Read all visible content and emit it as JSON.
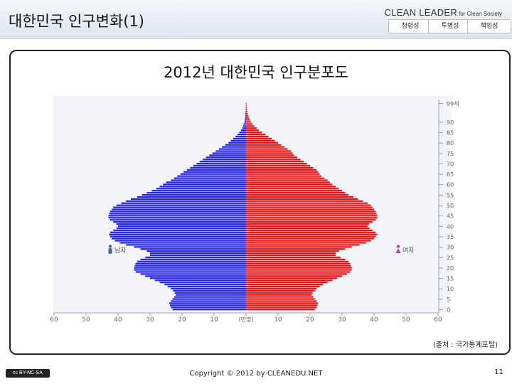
{
  "header": {
    "title": "대한민국 인구변화(1)",
    "brand": "CLEAN LEADER",
    "brand_sub": "for Clean Society",
    "tabs": [
      "청렴성",
      "투명성",
      "책임성"
    ]
  },
  "chart_data": {
    "type": "bar",
    "orientation": "horizontal-pyramid",
    "title": "2012년 대한민국 인구분포도",
    "xlabel": "(만명)",
    "xlim": [
      -60,
      60
    ],
    "x_ticks": [
      60,
      50,
      40,
      30,
      20,
      10,
      0,
      10,
      20,
      30,
      40,
      50,
      60
    ],
    "age_ticks": [
      "99세",
      "90",
      "85",
      "80",
      "75",
      "70",
      "65",
      "60",
      "55",
      "50",
      "45",
      "40",
      "35",
      "30",
      "25",
      "20",
      "15",
      "10",
      "5",
      "0"
    ],
    "ages": [
      0,
      1,
      2,
      3,
      4,
      5,
      6,
      7,
      8,
      9,
      10,
      11,
      12,
      13,
      14,
      15,
      16,
      17,
      18,
      19,
      20,
      21,
      22,
      23,
      24,
      25,
      26,
      27,
      28,
      29,
      30,
      31,
      32,
      33,
      34,
      35,
      36,
      37,
      38,
      39,
      40,
      41,
      42,
      43,
      44,
      45,
      46,
      47,
      48,
      49,
      50,
      51,
      52,
      53,
      54,
      55,
      56,
      57,
      58,
      59,
      60,
      61,
      62,
      63,
      64,
      65,
      66,
      67,
      68,
      69,
      70,
      71,
      72,
      73,
      74,
      75,
      76,
      77,
      78,
      79,
      80,
      81,
      82,
      83,
      84,
      85,
      86,
      87,
      88,
      89,
      90,
      91,
      92,
      93,
      94,
      95,
      96,
      97,
      98,
      99
    ],
    "series": [
      {
        "name": "남자",
        "color": "#2222ee",
        "values": [
          23,
          23.5,
          23.8,
          24,
          23.5,
          23,
          22.5,
          22,
          22.3,
          22.8,
          23.5,
          24.5,
          25.5,
          27,
          28.5,
          30,
          31.5,
          33,
          34.5,
          35,
          35,
          34.8,
          34.5,
          34,
          33,
          31.5,
          30,
          30,
          31,
          33,
          35,
          37.5,
          39.5,
          41,
          42,
          42.5,
          42.8,
          42.5,
          41.5,
          40.5,
          40,
          40.5,
          41.5,
          42.5,
          43,
          43,
          42.8,
          42.5,
          42,
          41.5,
          40.5,
          39,
          37.5,
          36,
          34,
          32.5,
          31,
          29.5,
          28,
          27,
          26,
          25,
          23.5,
          22.5,
          21.5,
          20.5,
          19.5,
          18.5,
          17.5,
          16.5,
          15.5,
          14.5,
          13.5,
          12.5,
          11.5,
          10.5,
          9.5,
          8.5,
          7.5,
          6.5,
          5.5,
          4.8,
          4,
          3.3,
          2.7,
          2.1,
          1.6,
          1.2,
          0.9,
          0.7,
          0.5,
          0.4,
          0.3,
          0.2,
          0.2,
          0.1,
          0.1,
          0.1,
          0.05,
          0.05
        ]
      },
      {
        "name": "여자",
        "color": "#ee1111",
        "values": [
          21.5,
          22,
          22.3,
          22.5,
          22,
          21.5,
          21,
          20.5,
          20.8,
          21.5,
          22,
          23,
          24,
          25.5,
          27,
          28.5,
          30,
          31.5,
          32.5,
          33,
          33,
          32.8,
          32.5,
          32,
          31,
          29.5,
          28,
          28,
          29,
          31,
          33,
          35.5,
          37.5,
          39,
          40,
          40.5,
          41,
          40.5,
          39.5,
          38.5,
          38,
          38.5,
          39.5,
          40.5,
          41,
          41,
          40.8,
          40.5,
          40,
          39.5,
          39,
          38,
          36.5,
          35,
          33.5,
          32,
          31,
          30,
          29,
          28,
          27,
          26.2,
          25.5,
          24.5,
          23.5,
          23,
          22.5,
          22,
          21,
          20,
          19,
          18,
          17,
          16,
          15,
          14.5,
          14,
          13,
          12,
          11,
          10,
          9,
          8,
          7,
          6,
          5,
          4,
          3.3,
          2.6,
          2,
          1.5,
          1.2,
          0.9,
          0.7,
          0.5,
          0.4,
          0.3,
          0.2,
          0.15,
          0.1
        ]
      }
    ],
    "legend": [
      {
        "label": "남자",
        "color": "#2222ee"
      },
      {
        "label": "여자",
        "color": "#ee1111"
      }
    ]
  },
  "source": "(출처 : 국가통계포털)",
  "footer": {
    "license": "cc BY-NC-SA",
    "copyright": "Copyright © 2012 by CLEANEDU.NET",
    "page_number": "11"
  }
}
